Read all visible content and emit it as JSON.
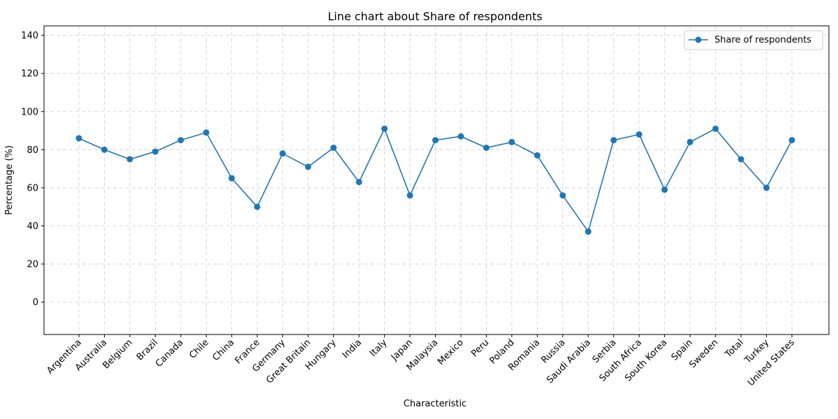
{
  "chart_data": {
    "type": "line",
    "title": "Line chart about Share of respondents",
    "xlabel": "Characteristic",
    "ylabel": "Percentage (%)",
    "ylim": [
      -17,
      145
    ],
    "yticks": [
      0,
      20,
      40,
      60,
      80,
      100,
      120,
      140
    ],
    "grid": true,
    "legend_position": "top-right",
    "line_color": "#1f77b4",
    "categories": [
      "Argentina",
      "Australia",
      "Belgium",
      "Brazil",
      "Canada",
      "Chile",
      "China",
      "France",
      "Germany",
      "Great Britain",
      "Hungary",
      "India",
      "Italy",
      "Japan",
      "Malaysia",
      "Mexico",
      "Peru",
      "Poland",
      "Romania",
      "Russia",
      "Saudi Arabia",
      "Serbia",
      "South Africa",
      "South Korea",
      "Spain",
      "Sweden",
      "Total",
      "Turkey",
      "United States"
    ],
    "series": [
      {
        "name": "Share of respondents",
        "values": [
          86,
          80,
          75,
          79,
          85,
          89,
          65,
          50,
          78,
          71,
          81,
          63,
          91,
          56,
          85,
          87,
          81,
          84,
          77,
          56,
          37,
          85,
          88,
          59,
          84,
          91,
          75,
          60,
          85
        ]
      }
    ]
  }
}
